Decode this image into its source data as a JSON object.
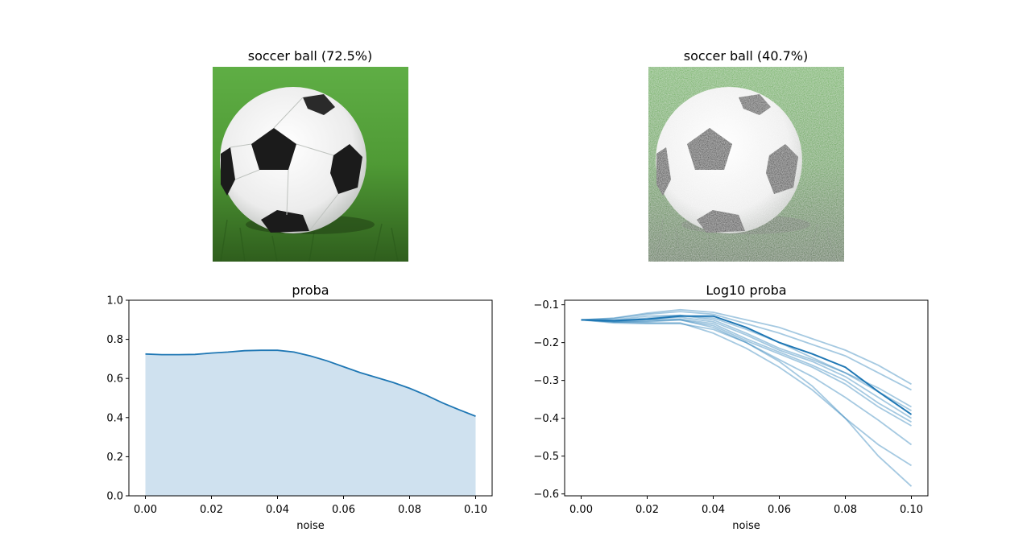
{
  "panels": {
    "image_left": {
      "title": "soccer ball (72.5%)"
    },
    "image_right": {
      "title": "soccer ball (40.7%)"
    }
  },
  "colors": {
    "line": "#1f77b4",
    "fill": "#cfe1ef",
    "grass_dark": "#3f7a24",
    "grass_light": "#6bb54a"
  },
  "chart_data": [
    {
      "type": "area",
      "title": "proba",
      "xlabel": "noise",
      "ylabel": "",
      "xlim": [
        -0.005,
        0.105
      ],
      "ylim": [
        0.0,
        1.0
      ],
      "xticks": [
        "0.00",
        "0.02",
        "0.04",
        "0.06",
        "0.08",
        "0.10"
      ],
      "yticks": [
        "0.0",
        "0.2",
        "0.4",
        "0.6",
        "0.8",
        "1.0"
      ],
      "grid": false,
      "x": [
        0.0,
        0.005,
        0.01,
        0.015,
        0.02,
        0.025,
        0.03,
        0.035,
        0.04,
        0.045,
        0.05,
        0.055,
        0.06,
        0.065,
        0.07,
        0.075,
        0.08,
        0.085,
        0.09,
        0.095,
        0.1
      ],
      "series": [
        {
          "values": [
            0.725,
            0.722,
            0.722,
            0.723,
            0.73,
            0.735,
            0.742,
            0.744,
            0.744,
            0.735,
            0.715,
            0.69,
            0.66,
            0.63,
            0.605,
            0.58,
            0.55,
            0.515,
            0.475,
            0.44,
            0.407
          ]
        }
      ]
    },
    {
      "type": "line",
      "title": "Log10 proba",
      "xlabel": "noise",
      "ylabel": "",
      "xlim": [
        -0.005,
        0.105
      ],
      "ylim": [
        -0.605,
        -0.088
      ],
      "xticks": [
        "0.00",
        "0.02",
        "0.04",
        "0.06",
        "0.08",
        "0.10"
      ],
      "yticks": [
        "−0.1",
        "−0.2",
        "−0.3",
        "−0.4",
        "−0.5",
        "−0.6"
      ],
      "grid": false,
      "x": [
        0.0,
        0.01,
        0.02,
        0.03,
        0.04,
        0.05,
        0.06,
        0.07,
        0.08,
        0.09,
        0.1
      ],
      "series": [
        {
          "emphasis": true,
          "values": [
            -0.14,
            -0.142,
            -0.138,
            -0.13,
            -0.13,
            -0.16,
            -0.2,
            -0.23,
            -0.265,
            -0.33,
            -0.39
          ]
        },
        {
          "values": [
            -0.14,
            -0.135,
            -0.122,
            -0.113,
            -0.12,
            -0.14,
            -0.16,
            -0.19,
            -0.22,
            -0.26,
            -0.31
          ]
        },
        {
          "values": [
            -0.14,
            -0.136,
            -0.125,
            -0.118,
            -0.125,
            -0.15,
            -0.175,
            -0.205,
            -0.235,
            -0.28,
            -0.325
          ]
        },
        {
          "values": [
            -0.14,
            -0.14,
            -0.13,
            -0.128,
            -0.135,
            -0.165,
            -0.2,
            -0.24,
            -0.28,
            -0.32,
            -0.37
          ]
        },
        {
          "values": [
            -0.14,
            -0.142,
            -0.135,
            -0.128,
            -0.14,
            -0.175,
            -0.215,
            -0.245,
            -0.28,
            -0.33,
            -0.38
          ]
        },
        {
          "values": [
            -0.14,
            -0.143,
            -0.138,
            -0.133,
            -0.145,
            -0.18,
            -0.22,
            -0.25,
            -0.29,
            -0.345,
            -0.4
          ]
        },
        {
          "values": [
            -0.14,
            -0.145,
            -0.143,
            -0.138,
            -0.15,
            -0.19,
            -0.225,
            -0.26,
            -0.3,
            -0.36,
            -0.41
          ]
        },
        {
          "values": [
            -0.14,
            -0.145,
            -0.145,
            -0.14,
            -0.155,
            -0.195,
            -0.23,
            -0.265,
            -0.31,
            -0.37,
            -0.42
          ]
        },
        {
          "values": [
            -0.14,
            -0.148,
            -0.15,
            -0.15,
            -0.165,
            -0.2,
            -0.245,
            -0.29,
            -0.345,
            -0.405,
            -0.47
          ]
        },
        {
          "values": [
            -0.14,
            -0.145,
            -0.148,
            -0.148,
            -0.175,
            -0.215,
            -0.265,
            -0.325,
            -0.4,
            -0.47,
            -0.525
          ]
        },
        {
          "values": [
            -0.14,
            -0.142,
            -0.14,
            -0.14,
            -0.16,
            -0.2,
            -0.25,
            -0.315,
            -0.4,
            -0.5,
            -0.58
          ]
        }
      ]
    }
  ]
}
